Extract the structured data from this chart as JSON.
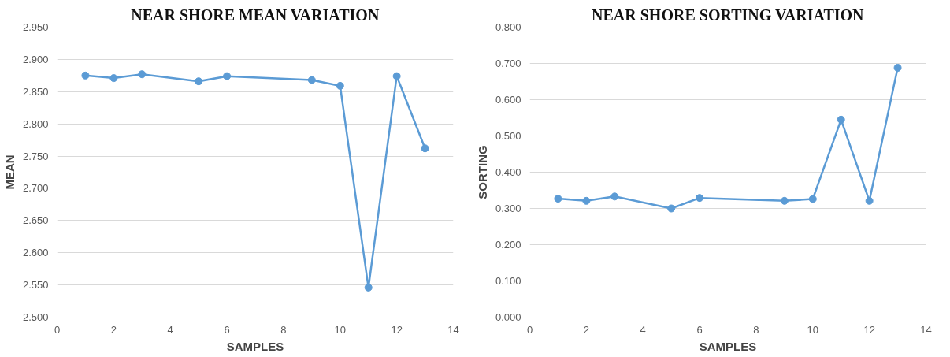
{
  "chart_data": [
    {
      "type": "line",
      "title": "NEAR SHORE MEAN VARIATION",
      "xlabel": "SAMPLES",
      "ylabel": "MEAN",
      "x": [
        1,
        2,
        3,
        5,
        6,
        9,
        10,
        11,
        12,
        13
      ],
      "series": [
        {
          "color": "#5b9bd5",
          "values": [
            2.875,
            2.871,
            2.877,
            2.866,
            2.874,
            2.868,
            2.859,
            2.546,
            2.874,
            2.762
          ]
        }
      ],
      "marker": "circle",
      "grid": "y",
      "xlim": [
        0,
        14
      ],
      "xticks": [
        0,
        2,
        4,
        6,
        8,
        10,
        12,
        14
      ],
      "ylim": [
        2.5,
        2.95
      ],
      "yticks": [
        {
          "value": 2.5,
          "label": "2.500"
        },
        {
          "value": 2.55,
          "label": "2.550"
        },
        {
          "value": 2.6,
          "label": "2.600"
        },
        {
          "value": 2.65,
          "label": "2.650"
        },
        {
          "value": 2.7,
          "label": "2.700"
        },
        {
          "value": 2.75,
          "label": "2.750"
        },
        {
          "value": 2.8,
          "label": "2.800"
        },
        {
          "value": 2.85,
          "label": "2.850"
        },
        {
          "value": 2.9,
          "label": "2.900"
        },
        {
          "value": 2.95,
          "label": "2.950"
        }
      ]
    },
    {
      "type": "line",
      "title": "NEAR SHORE SORTING VARIATION",
      "xlabel": "SAMPLES",
      "ylabel": "SORTING",
      "x": [
        1,
        2,
        3,
        5,
        6,
        9,
        10,
        11,
        12,
        13
      ],
      "series": [
        {
          "color": "#5b9bd5",
          "values": [
            0.327,
            0.321,
            0.333,
            0.3,
            0.329,
            0.321,
            0.326,
            0.545,
            0.321,
            0.688
          ]
        }
      ],
      "marker": "circle",
      "grid": "y",
      "xlim": [
        0,
        14
      ],
      "xticks": [
        0,
        2,
        4,
        6,
        8,
        10,
        12,
        14
      ],
      "ylim": [
        0,
        0.8
      ],
      "yticks": [
        {
          "value": 0,
          "label": "0.000"
        },
        {
          "value": 0.1,
          "label": "0.100"
        },
        {
          "value": 0.2,
          "label": "0.200"
        },
        {
          "value": 0.3,
          "label": "0.300"
        },
        {
          "value": 0.4,
          "label": "0.400"
        },
        {
          "value": 0.5,
          "label": "0.500"
        },
        {
          "value": 0.6,
          "label": "0.600"
        },
        {
          "value": 0.7,
          "label": "0.700"
        },
        {
          "value": 0.8,
          "label": "0.800"
        }
      ]
    }
  ]
}
